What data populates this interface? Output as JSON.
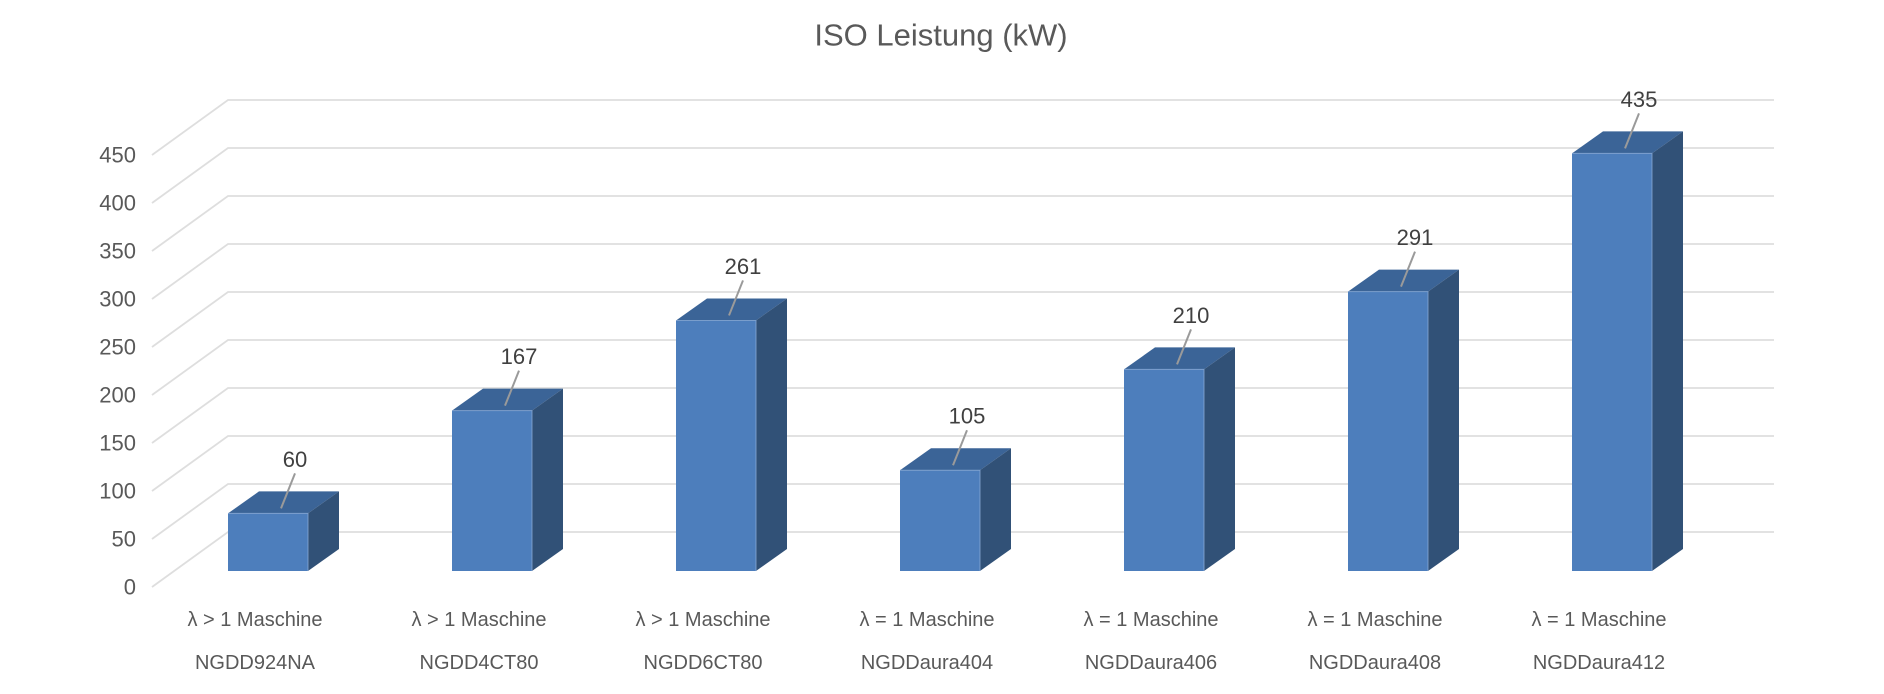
{
  "chart_data": {
    "type": "bar",
    "style": "3d-clustered-column",
    "title": "ISO Leistung (kW)",
    "categories": [
      "NGDD924NA",
      "NGDD4CT80",
      "NGDD6CT80",
      "NGDDaura404",
      "NGDDaura406",
      "NGDDaura408",
      "NGDDaura412"
    ],
    "category_group_labels": [
      "λ > 1 Maschine",
      "λ > 1 Maschine",
      "λ > 1 Maschine",
      "λ = 1 Maschine",
      "λ = 1 Maschine",
      "λ = 1 Maschine",
      "λ = 1 Maschine"
    ],
    "values": [
      60,
      167,
      261,
      105,
      210,
      291,
      435
    ],
    "data_labels_shown": true,
    "xlabel": "",
    "ylabel": "",
    "ylim": [
      0,
      450
    ],
    "ytick_step": 50,
    "yticks": [
      0,
      50,
      100,
      150,
      200,
      250,
      300,
      350,
      400,
      450
    ],
    "grid": true,
    "legend": false
  },
  "colors": {
    "background": "#ffffff",
    "bar_front": "#4d7ebc",
    "bar_top": "#3b6497",
    "bar_side": "#315177",
    "bar_edge_highlight": "#88a9d4",
    "gridline": "#dedede",
    "leader_line": "#9a9a9a",
    "axis_text": "#595959",
    "category_text": "#595959",
    "data_label_text": "#404040",
    "title_text": "#595959"
  }
}
